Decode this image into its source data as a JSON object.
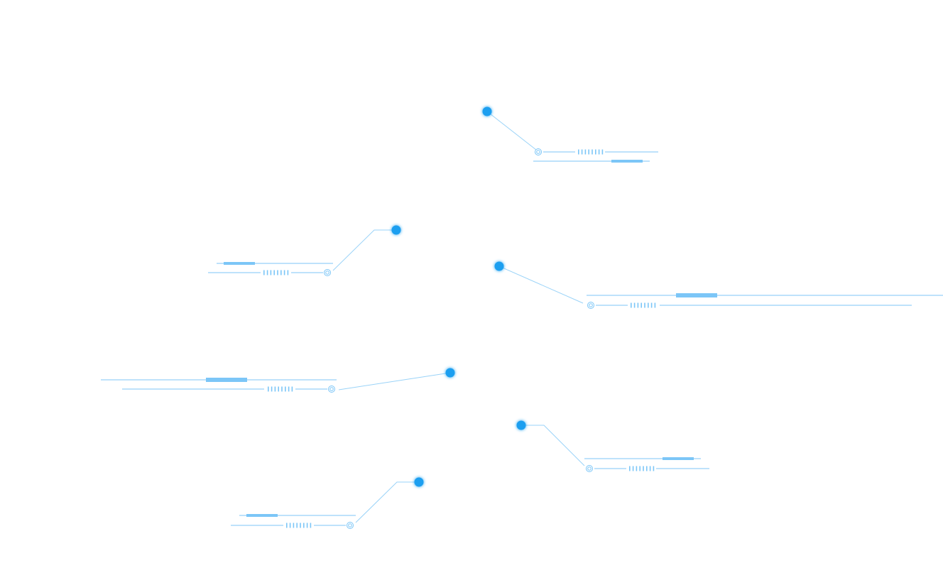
{
  "colors": {
    "background": "#ffffff",
    "dot": "#1e9ff0",
    "dot_glow": "#1e9ff0",
    "line": "#7cc6f7",
    "leader": "#9ad3f8"
  },
  "icons": {
    "dot": "glowing-dot-icon",
    "ring": "target-ring-icon",
    "ticks": "tick-marks-icon"
  },
  "callout_count": 6
}
